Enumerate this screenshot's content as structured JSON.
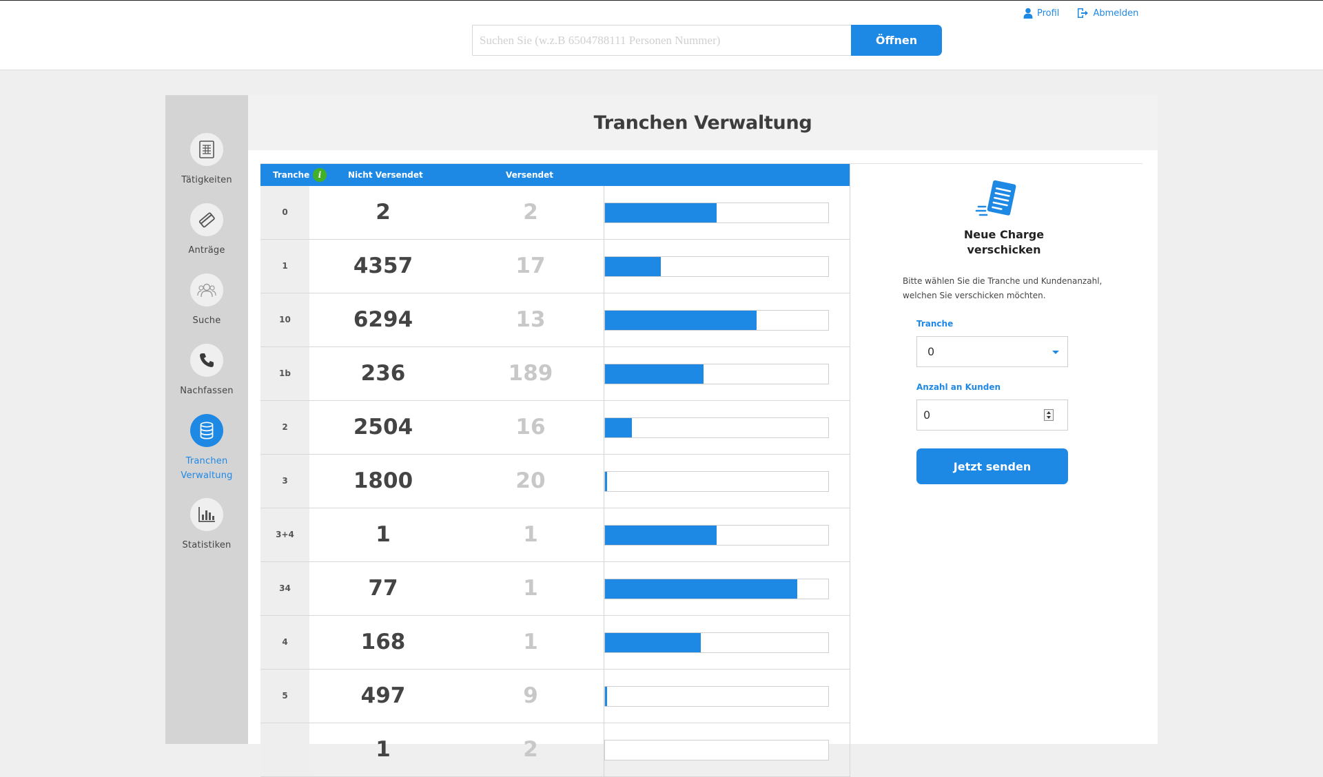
{
  "header": {
    "search_placeholder": "Suchen Sie (w.z.B 6504788111 Personen Nummer)",
    "search_value": "",
    "open_label": "Öffnen",
    "profile_label": "Profil",
    "logout_label": "Abmelden",
    "accent_color": "#1e88e5"
  },
  "sidebar": {
    "items": [
      {
        "label": "Tätigkeiten",
        "icon": "document-icon",
        "active": false
      },
      {
        "label": "Anträge",
        "icon": "card-icon",
        "active": false
      },
      {
        "label": "Suche",
        "icon": "people-icon",
        "active": false
      },
      {
        "label": "Nachfassen",
        "icon": "phone-icon",
        "active": false
      },
      {
        "label": "Tranchen Verwaltung",
        "icon": "database-icon",
        "active": true
      },
      {
        "label": "Statistiken",
        "icon": "bar-chart-icon",
        "active": false
      }
    ]
  },
  "main": {
    "title": "Tranchen Verwaltung",
    "table": {
      "headers": {
        "tranche": "Tranche",
        "nicht_versendet": "Nicht Versendet",
        "versendet": "Versendet"
      },
      "info_icon": "i",
      "rows": [
        {
          "tranche": "0",
          "nicht_versendet": "2",
          "versendet": "2",
          "progress": 0.5
        },
        {
          "tranche": "1",
          "nicht_versendet": "4357",
          "versendet": "17",
          "progress": 0.25
        },
        {
          "tranche": "10",
          "nicht_versendet": "6294",
          "versendet": "13",
          "progress": 0.68
        },
        {
          "tranche": "1b",
          "nicht_versendet": "236",
          "versendet": "189",
          "progress": 0.44
        },
        {
          "tranche": "2",
          "nicht_versendet": "2504",
          "versendet": "16",
          "progress": 0.12
        },
        {
          "tranche": "3",
          "nicht_versendet": "1800",
          "versendet": "20",
          "progress": 0.01
        },
        {
          "tranche": "3+4",
          "nicht_versendet": "1",
          "versendet": "1",
          "progress": 0.5
        },
        {
          "tranche": "34",
          "nicht_versendet": "77",
          "versendet": "1",
          "progress": 0.86
        },
        {
          "tranche": "4",
          "nicht_versendet": "168",
          "versendet": "1",
          "progress": 0.43
        },
        {
          "tranche": "5",
          "nicht_versendet": "497",
          "versendet": "9",
          "progress": 0.01
        },
        {
          "tranche": "",
          "nicht_versendet": "1",
          "versendet": "2",
          "progress": 0.0
        }
      ]
    }
  },
  "panel": {
    "title_line1": "Neue Charge",
    "title_line2": "verschicken",
    "description": "Bitte wählen Sie die Tranche und Kundenanzahl, welchen Sie verschicken möchten.",
    "tranche_label": "Tranche",
    "tranche_value": "0",
    "count_label": "Anzahl an Kunden",
    "count_value": "0",
    "send_label": "Jetzt senden",
    "icon": "document-send-icon"
  }
}
